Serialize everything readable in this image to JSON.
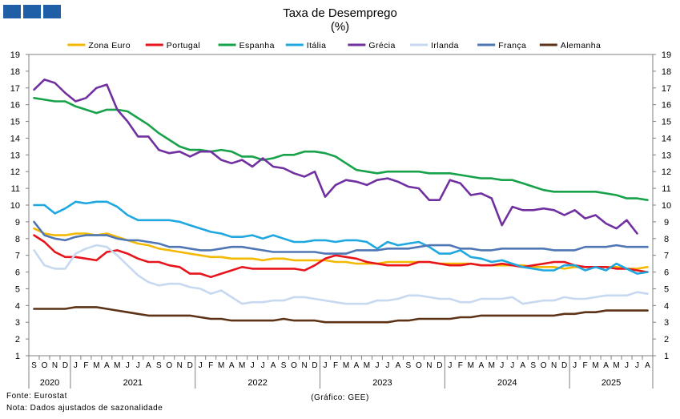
{
  "header": {
    "title": "Taxa de Desemprego",
    "subtitle": "(%)"
  },
  "footer": {
    "source": "Fonte: Eurostat",
    "note": "Nota: Dados ajustados de sazonalidade",
    "credit": "(Gráfico: GEE)"
  },
  "chart_data": {
    "type": "line",
    "title": "Taxa de Desemprego",
    "subtitle": "(%)",
    "xlabel": "",
    "ylabel": "",
    "ylim": [
      1,
      19
    ],
    "yticks": [
      1,
      2,
      3,
      4,
      5,
      6,
      7,
      8,
      9,
      10,
      11,
      12,
      13,
      14,
      15,
      16,
      17,
      18,
      19
    ],
    "grid": false,
    "legend_position": "top",
    "months": [
      "S",
      "O",
      "N",
      "D",
      "J",
      "F",
      "M",
      "A",
      "M",
      "J",
      "J",
      "A",
      "S",
      "O",
      "N",
      "D",
      "J",
      "F",
      "M",
      "A",
      "M",
      "J",
      "J",
      "A",
      "S",
      "O",
      "N",
      "D",
      "J",
      "F",
      "M",
      "A",
      "M",
      "J",
      "J",
      "A",
      "S",
      "O",
      "N",
      "D",
      "J",
      "F",
      "M",
      "A",
      "M",
      "J",
      "J",
      "A",
      "S",
      "O",
      "N",
      "D",
      "J",
      "F",
      "M",
      "A",
      "M",
      "J",
      "J",
      "A"
    ],
    "years": [
      {
        "label": "2020",
        "start": 0,
        "end": 3
      },
      {
        "label": "2021",
        "start": 4,
        "end": 15
      },
      {
        "label": "2022",
        "start": 16,
        "end": 27
      },
      {
        "label": "2023",
        "start": 28,
        "end": 39
      },
      {
        "label": "2024",
        "start": 40,
        "end": 51
      },
      {
        "label": "2025",
        "start": 52,
        "end": 59
      }
    ],
    "series": [
      {
        "name": "Zona Euro",
        "color": "#f5b800",
        "values": [
          8.6,
          8.3,
          8.2,
          8.2,
          8.3,
          8.3,
          8.2,
          8.3,
          8.1,
          7.9,
          7.7,
          7.6,
          7.4,
          7.3,
          7.2,
          7.1,
          7.0,
          6.9,
          6.9,
          6.8,
          6.8,
          6.8,
          6.7,
          6.8,
          6.8,
          6.7,
          6.7,
          6.7,
          6.7,
          6.6,
          6.6,
          6.5,
          6.5,
          6.5,
          6.6,
          6.6,
          6.6,
          6.6,
          6.6,
          6.5,
          6.5,
          6.5,
          6.5,
          6.4,
          6.4,
          6.4,
          6.4,
          6.4,
          6.3,
          6.3,
          6.3,
          6.2,
          6.3,
          6.3,
          6.3,
          6.3,
          6.3,
          6.2,
          6.2,
          6.3
        ]
      },
      {
        "name": "Portugal",
        "color": "#e8141c",
        "values": [
          8.2,
          7.8,
          7.2,
          6.9,
          6.9,
          6.8,
          6.7,
          7.2,
          7.3,
          7.1,
          6.8,
          6.6,
          6.6,
          6.4,
          6.3,
          5.9,
          5.9,
          5.7,
          5.9,
          6.1,
          6.3,
          6.2,
          6.2,
          6.2,
          6.2,
          6.2,
          6.1,
          6.4,
          6.8,
          7.0,
          6.9,
          6.8,
          6.6,
          6.5,
          6.4,
          6.4,
          6.4,
          6.6,
          6.6,
          6.5,
          6.4,
          6.4,
          6.5,
          6.4,
          6.4,
          6.5,
          6.4,
          6.3,
          6.4,
          6.5,
          6.6,
          6.6,
          6.4,
          6.3,
          6.3,
          6.3,
          6.2,
          6.2,
          6.1,
          6.0
        ]
      },
      {
        "name": "Espanha",
        "color": "#17a24a",
        "values": [
          16.4,
          16.3,
          16.2,
          16.2,
          15.9,
          15.7,
          15.5,
          15.7,
          15.7,
          15.6,
          15.2,
          14.8,
          14.3,
          13.9,
          13.5,
          13.3,
          13.3,
          13.2,
          13.3,
          13.2,
          12.9,
          12.9,
          12.7,
          12.8,
          13.0,
          13.0,
          13.2,
          13.2,
          13.1,
          12.9,
          12.5,
          12.1,
          12.0,
          11.9,
          12.0,
          12.0,
          12.0,
          12.0,
          11.9,
          11.9,
          11.9,
          11.8,
          11.7,
          11.6,
          11.6,
          11.5,
          11.5,
          11.3,
          11.1,
          10.9,
          10.8,
          10.8,
          10.8,
          10.8,
          10.8,
          10.7,
          10.6,
          10.4,
          10.4,
          10.3
        ]
      },
      {
        "name": "Itália",
        "color": "#1fa8e0",
        "values": [
          10.0,
          10.0,
          9.5,
          9.8,
          10.2,
          10.1,
          10.2,
          10.2,
          9.9,
          9.4,
          9.1,
          9.1,
          9.1,
          9.1,
          9.0,
          8.8,
          8.6,
          8.4,
          8.3,
          8.1,
          8.1,
          8.2,
          8.0,
          8.2,
          8.0,
          7.8,
          7.8,
          7.9,
          7.9,
          7.8,
          7.9,
          7.9,
          7.8,
          7.4,
          7.8,
          7.6,
          7.7,
          7.8,
          7.5,
          7.1,
          7.1,
          7.3,
          6.9,
          6.8,
          6.6,
          6.7,
          6.5,
          6.3,
          6.2,
          6.1,
          6.1,
          6.4,
          6.4,
          6.1,
          6.3,
          6.1,
          6.5,
          6.2,
          5.9,
          6.0
        ]
      },
      {
        "name": "Grécia",
        "color": "#7030a0",
        "values": [
          16.9,
          17.5,
          17.3,
          16.7,
          16.2,
          16.4,
          17.0,
          17.2,
          15.7,
          15.0,
          14.1,
          14.1,
          13.3,
          13.1,
          13.2,
          12.9,
          13.2,
          13.2,
          12.7,
          12.5,
          12.7,
          12.3,
          12.8,
          12.3,
          12.2,
          11.9,
          11.7,
          12.0,
          10.5,
          11.2,
          11.5,
          11.4,
          11.2,
          11.5,
          11.6,
          11.4,
          11.1,
          11.0,
          10.3,
          10.3,
          11.5,
          11.3,
          10.6,
          10.7,
          10.4,
          8.8,
          9.9,
          9.7,
          9.7,
          9.8,
          9.7,
          9.4,
          9.7,
          9.2,
          9.4,
          8.9,
          8.6,
          9.1,
          8.3,
          null
        ]
      },
      {
        "name": "Irlanda",
        "color": "#c6d9f0",
        "values": [
          7.3,
          6.4,
          6.2,
          6.2,
          7.1,
          7.4,
          7.6,
          7.5,
          7.0,
          6.4,
          5.8,
          5.4,
          5.2,
          5.3,
          5.3,
          5.1,
          5.0,
          4.7,
          4.9,
          4.5,
          4.1,
          4.2,
          4.2,
          4.3,
          4.3,
          4.5,
          4.5,
          4.4,
          4.3,
          4.2,
          4.1,
          4.1,
          4.1,
          4.3,
          4.3,
          4.4,
          4.6,
          4.6,
          4.5,
          4.4,
          4.4,
          4.2,
          4.2,
          4.4,
          4.4,
          4.4,
          4.5,
          4.1,
          4.2,
          4.3,
          4.3,
          4.5,
          4.4,
          4.4,
          4.5,
          4.6,
          4.6,
          4.6,
          4.8,
          4.7
        ]
      },
      {
        "name": "França",
        "color": "#4f76b5",
        "values": [
          9.0,
          8.2,
          8.0,
          7.9,
          8.1,
          8.2,
          8.2,
          8.2,
          8.0,
          7.9,
          7.9,
          7.8,
          7.7,
          7.5,
          7.5,
          7.4,
          7.3,
          7.3,
          7.4,
          7.5,
          7.5,
          7.4,
          7.3,
          7.2,
          7.2,
          7.2,
          7.2,
          7.2,
          7.1,
          7.1,
          7.1,
          7.3,
          7.3,
          7.3,
          7.4,
          7.4,
          7.4,
          7.5,
          7.6,
          7.6,
          7.6,
          7.4,
          7.4,
          7.3,
          7.3,
          7.4,
          7.4,
          7.4,
          7.4,
          7.4,
          7.3,
          7.3,
          7.3,
          7.5,
          7.5,
          7.5,
          7.6,
          7.5,
          7.5,
          7.5
        ]
      },
      {
        "name": "Alemanha",
        "color": "#5c3317",
        "values": [
          3.8,
          3.8,
          3.8,
          3.8,
          3.9,
          3.9,
          3.9,
          3.8,
          3.7,
          3.6,
          3.5,
          3.4,
          3.4,
          3.4,
          3.4,
          3.4,
          3.3,
          3.2,
          3.2,
          3.1,
          3.1,
          3.1,
          3.1,
          3.1,
          3.2,
          3.1,
          3.1,
          3.1,
          3.0,
          3.0,
          3.0,
          3.0,
          3.0,
          3.0,
          3.0,
          3.1,
          3.1,
          3.2,
          3.2,
          3.2,
          3.2,
          3.3,
          3.3,
          3.4,
          3.4,
          3.4,
          3.4,
          3.4,
          3.4,
          3.4,
          3.4,
          3.5,
          3.5,
          3.6,
          3.6,
          3.7,
          3.7,
          3.7,
          3.7,
          3.7
        ]
      }
    ]
  }
}
